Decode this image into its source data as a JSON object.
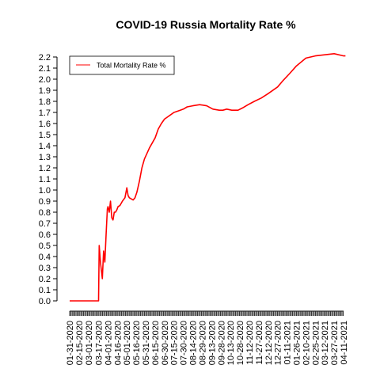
{
  "chart_data": {
    "type": "line",
    "title": "COVID-19 Russia Mortality Rate %",
    "xlabel": "",
    "ylabel": "",
    "ylim": [
      0,
      2.2
    ],
    "yticks": [
      "0.0",
      "0.1",
      "0.2",
      "0.3",
      "0.4",
      "0.5",
      "0.6",
      "0.7",
      "0.8",
      "0.9",
      "1.0",
      "1.1",
      "1.2",
      "1.3",
      "1.4",
      "1.5",
      "1.6",
      "1.7",
      "1.8",
      "1.9",
      "2.0",
      "2.1",
      "2.2"
    ],
    "xticks": [
      "01-31-2020",
      "02-15-2020",
      "03-01-2020",
      "03-17-2020",
      "04-01-2020",
      "04-16-2020",
      "05-01-2020",
      "05-16-2020",
      "05-31-2020",
      "06-15-2020",
      "06-30-2020",
      "07-15-2020",
      "07-30-2020",
      "08-14-2020",
      "08-29-2020",
      "09-13-2020",
      "09-28-2020",
      "10-13-2020",
      "10-28-2020",
      "11-12-2020",
      "11-27-2020",
      "12-12-2020",
      "12-27-2020",
      "01-11-2021",
      "01-26-2021",
      "02-10-2021",
      "02-25-2021",
      "03-12-2021",
      "03-27-2021",
      "04-11-2021"
    ],
    "legend": {
      "position": "top-left",
      "entries": [
        "Total Mortality Rate %"
      ]
    },
    "grid": false,
    "series": [
      {
        "name": "Total Mortality Rate %",
        "color": "#ff0000",
        "x": [
          "01-31-2020",
          "02-10-2020",
          "02-20-2020",
          "03-01-2020",
          "03-10-2020",
          "03-17-2020",
          "03-18-2020",
          "03-20-2020",
          "03-23-2020",
          "03-25-2020",
          "03-27-2020",
          "03-29-2020",
          "03-31-2020",
          "04-01-2020",
          "04-03-2020",
          "04-05-2020",
          "04-07-2020",
          "04-09-2020",
          "04-11-2020",
          "04-13-2020",
          "04-15-2020",
          "04-17-2020",
          "04-20-2020",
          "04-24-2020",
          "04-28-2020",
          "05-01-2020",
          "05-03-2020",
          "05-05-2020",
          "05-08-2020",
          "05-11-2020",
          "05-14-2020",
          "05-17-2020",
          "05-21-2020",
          "05-25-2020",
          "05-29-2020",
          "06-02-2020",
          "06-06-2020",
          "06-10-2020",
          "06-15-2020",
          "06-20-2020",
          "06-25-2020",
          "06-30-2020",
          "07-05-2020",
          "07-10-2020",
          "07-15-2020",
          "07-20-2020",
          "07-25-2020",
          "07-30-2020",
          "08-05-2020",
          "08-14-2020",
          "08-25-2020",
          "09-05-2020",
          "09-15-2020",
          "09-25-2020",
          "10-01-2020",
          "10-07-2020",
          "10-15-2020",
          "10-25-2020",
          "11-01-2020",
          "11-10-2020",
          "11-20-2020",
          "12-01-2020",
          "12-12-2020",
          "12-27-2020",
          "01-05-2021",
          "01-15-2021",
          "01-26-2021",
          "02-10-2021",
          "02-25-2021",
          "03-12-2021",
          "03-27-2021",
          "04-11-2021",
          "04-14-2021"
        ],
        "values": [
          0.0,
          0.0,
          0.0,
          0.0,
          0.0,
          0.0,
          0.5,
          0.35,
          0.2,
          0.45,
          0.35,
          0.6,
          0.83,
          0.85,
          0.8,
          0.9,
          0.75,
          0.73,
          0.8,
          0.8,
          0.82,
          0.85,
          0.86,
          0.9,
          0.93,
          1.02,
          0.95,
          0.93,
          0.92,
          0.91,
          0.93,
          0.98,
          1.08,
          1.2,
          1.28,
          1.33,
          1.38,
          1.42,
          1.47,
          1.55,
          1.6,
          1.64,
          1.66,
          1.68,
          1.7,
          1.71,
          1.72,
          1.73,
          1.75,
          1.76,
          1.77,
          1.76,
          1.73,
          1.72,
          1.72,
          1.73,
          1.72,
          1.72,
          1.74,
          1.77,
          1.8,
          1.83,
          1.87,
          1.93,
          1.99,
          2.05,
          2.12,
          2.19,
          2.21,
          2.22,
          2.23,
          2.21,
          2.21
        ]
      }
    ]
  }
}
